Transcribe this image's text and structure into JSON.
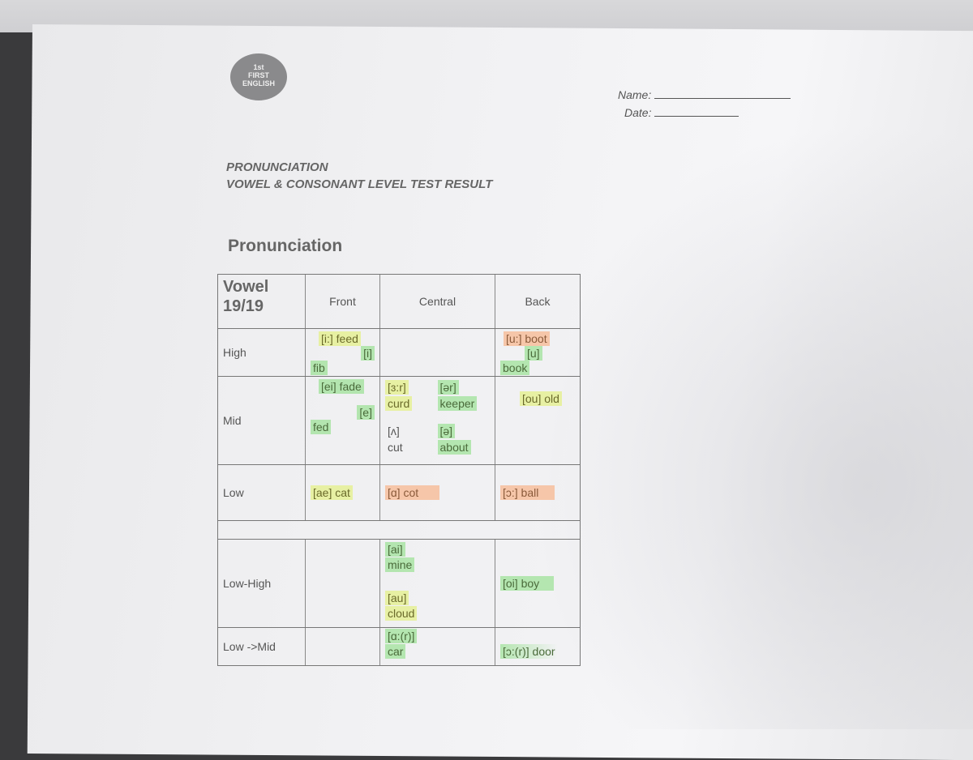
{
  "logo": {
    "text": "1st FIRST ENGLISH"
  },
  "header": {
    "name_label": "Name:",
    "date_label": "Date:"
  },
  "title": {
    "line1": "PRONUNCIATION",
    "line2": "VOWEL & CONSONANT LEVEL TEST RESULT"
  },
  "section": "Pronunciation",
  "table": {
    "corner": "Vowel",
    "score": "19/19",
    "columns": [
      "Front",
      "Central",
      "Back"
    ],
    "rows": {
      "high": {
        "label": "High",
        "front": [
          "[i:] feed",
          "[i]",
          "fib"
        ],
        "back": [
          "[u:] boot",
          "[u]",
          "book"
        ]
      },
      "mid": {
        "label": "Mid",
        "front": [
          "[ei] fade",
          "[e]",
          "fed"
        ],
        "central": [
          "[ɜ:r]",
          "curd",
          "[ər]",
          "keeper",
          "[ʌ]",
          "cut",
          "[ə]",
          "about"
        ],
        "back": [
          "[ou] old"
        ]
      },
      "low": {
        "label": "Low",
        "front": [
          "[ae] cat"
        ],
        "central": [
          "[ɑ] cot"
        ],
        "back": [
          "[ɔ:] ball"
        ]
      },
      "lowhigh": {
        "label": "Low-High",
        "central": [
          "[ai]",
          "mine",
          "[au]",
          "cloud"
        ],
        "back": [
          "[oi] boy"
        ]
      },
      "lowmid": {
        "label": "Low ->Mid",
        "central": [
          "[ɑ:(r)]",
          "car"
        ],
        "back": [
          "[ɔ:(r)] door"
        ]
      }
    }
  },
  "highlight_colors": {
    "green": "#82dc78",
    "yellow": "#e1f06e",
    "orange": "#faaa78"
  }
}
